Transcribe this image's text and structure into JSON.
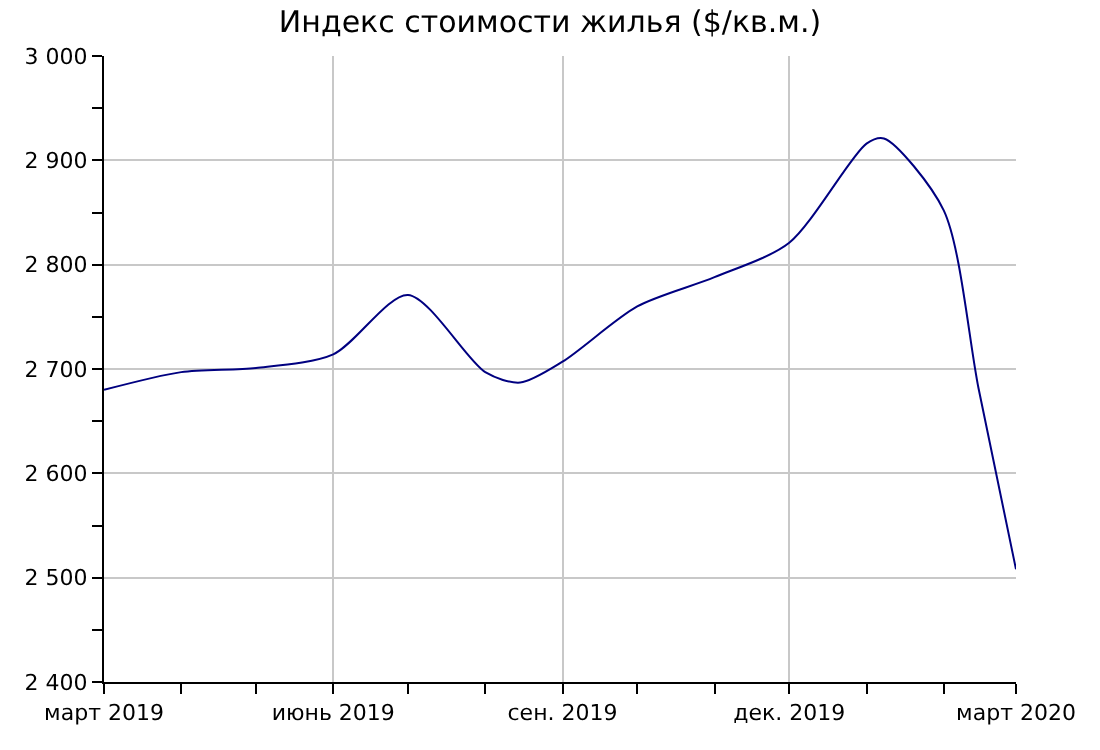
{
  "chart_data": {
    "type": "line",
    "title": "Индекс стоимости жилья ($/кв.м.)",
    "x": [
      "2019-03",
      "2019-04",
      "2019-05",
      "2019-06",
      "2019-07",
      "2019-08",
      "2019-08-15",
      "2019-09",
      "2019-10",
      "2019-11",
      "2019-12",
      "2020-01",
      "2020-01-08",
      "2020-02",
      "2020-02-15",
      "2020-03"
    ],
    "series": [
      {
        "color": "#000080",
        "values": [
          2680,
          2697,
          2701,
          2714,
          2771,
          2697,
          2687,
          2707,
          2760,
          2788,
          2821,
          2916,
          2921,
          2852,
          2681,
          2508
        ]
      }
    ],
    "xlim": [
      "2019-03",
      "2020-03"
    ],
    "xticks": [
      {
        "value": "2019-03",
        "label": "март 2019"
      },
      {
        "value": "2019-04",
        "label": null
      },
      {
        "value": "2019-05",
        "label": null
      },
      {
        "value": "2019-06",
        "label": "июнь 2019"
      },
      {
        "value": "2019-07",
        "label": null
      },
      {
        "value": "2019-08",
        "label": null
      },
      {
        "value": "2019-09",
        "label": "сен. 2019"
      },
      {
        "value": "2019-10",
        "label": null
      },
      {
        "value": "2019-11",
        "label": null
      },
      {
        "value": "2019-12",
        "label": "дек. 2019"
      },
      {
        "value": "2020-01",
        "label": null
      },
      {
        "value": "2020-02",
        "label": null
      },
      {
        "value": "2020-03",
        "label": "март 2020"
      }
    ],
    "ylim": [
      2400,
      3000
    ],
    "yticks": [
      {
        "value": 2400,
        "label": "2 400"
      },
      {
        "value": 2450,
        "label": null
      },
      {
        "value": 2500,
        "label": "2 500"
      },
      {
        "value": 2550,
        "label": null
      },
      {
        "value": 2600,
        "label": "2 600"
      },
      {
        "value": 2650,
        "label": null
      },
      {
        "value": 2700,
        "label": "2 700"
      },
      {
        "value": 2750,
        "label": null
      },
      {
        "value": 2800,
        "label": "2 800"
      },
      {
        "value": 2850,
        "label": null
      },
      {
        "value": 2900,
        "label": "2 900"
      },
      {
        "value": 2950,
        "label": null
      },
      {
        "value": 3000,
        "label": "3 000"
      }
    ],
    "grid": true,
    "marker": "none",
    "line_style": "solid"
  }
}
